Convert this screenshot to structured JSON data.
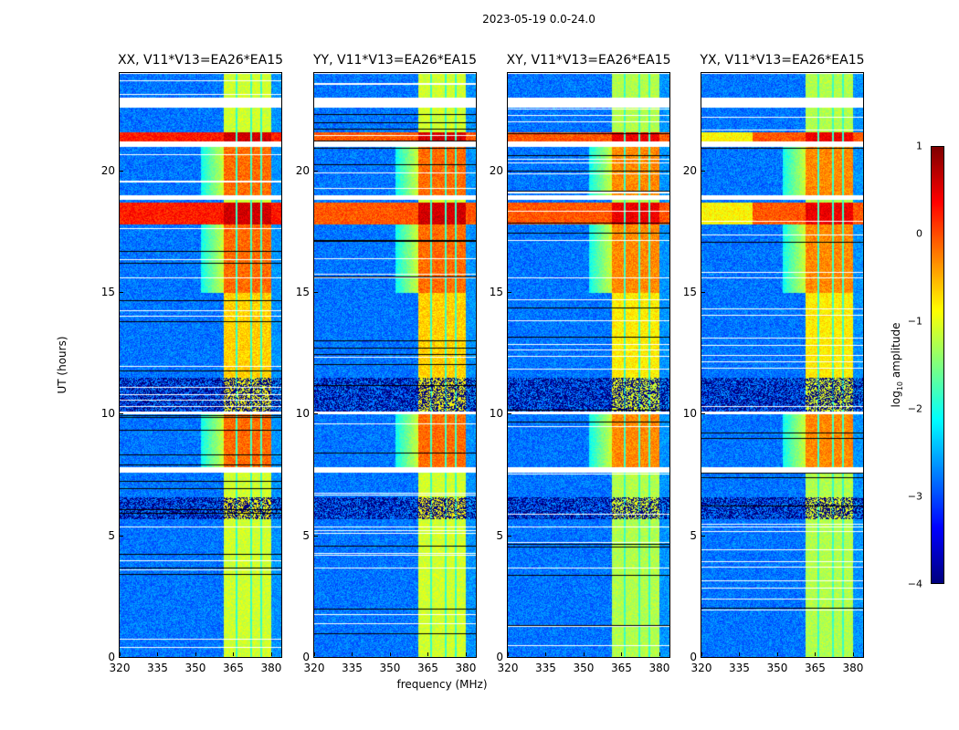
{
  "suptitle": "2023-05-19 0.0-24.0",
  "chart_data": {
    "type": "heatmap",
    "title": "2023-05-19 0.0-24.0",
    "xlabel": "frequency (MHz)",
    "ylabel": "UT (hours)",
    "xlim": [
      320,
      384
    ],
    "ylim": [
      0,
      24
    ],
    "xticks": [
      320,
      335,
      350,
      365,
      380
    ],
    "yticks": [
      0,
      5,
      10,
      15,
      20
    ],
    "colormap": "jet",
    "colorbar": {
      "label_prefix": "log",
      "label_sub": "10",
      "label_suffix": " amplitude",
      "range": [
        -4,
        1
      ],
      "ticks": [
        1,
        0,
        -1,
        -2,
        -3,
        -4
      ],
      "tick_labels": [
        "1",
        "0",
        "−1",
        "−2",
        "−3",
        "−4"
      ]
    },
    "signal_band_mhz": [
      361,
      380
    ],
    "channel_gaps_mhz": [
      366,
      372,
      376
    ],
    "panels": [
      {
        "pol": "XX",
        "title": "XX, V11*V13=EA26*EA15",
        "xlabel_shown": false
      },
      {
        "pol": "YY",
        "title": "YY, V11*V13=EA26*EA15",
        "xlabel_shown": true
      },
      {
        "pol": "XY",
        "title": "XY, V11*V13=EA26*EA15",
        "xlabel_shown": false
      },
      {
        "pol": "YX",
        "title": "YX, V11*V13=EA26*EA15",
        "xlabel_shown": false
      }
    ],
    "time_features": [
      {
        "ut": [
          22.6,
          23.0
        ],
        "kind": "flagged"
      },
      {
        "ut": [
          21.2,
          21.6
        ],
        "kind": "rfi-strong"
      },
      {
        "ut": [
          21.0,
          21.2
        ],
        "kind": "flagged"
      },
      {
        "ut": [
          19.0,
          21.0
        ],
        "kind": "signal-high"
      },
      {
        "ut": [
          18.8,
          19.0
        ],
        "kind": "flagged"
      },
      {
        "ut": [
          17.8,
          18.7
        ],
        "kind": "rfi-strong"
      },
      {
        "ut": [
          15.0,
          17.8
        ],
        "kind": "signal-high"
      },
      {
        "ut": [
          11.5,
          15.0
        ],
        "kind": "signal-mid"
      },
      {
        "ut": [
          10.1,
          11.5
        ],
        "kind": "dropout"
      },
      {
        "ut": [
          10.0,
          10.1
        ],
        "kind": "flagged"
      },
      {
        "ut": [
          7.8,
          10.0
        ],
        "kind": "signal-high"
      },
      {
        "ut": [
          7.6,
          7.8
        ],
        "kind": "flagged"
      },
      {
        "ut": [
          5.7,
          6.6
        ],
        "kind": "dropout"
      },
      {
        "ut": [
          0.0,
          5.7
        ],
        "kind": "signal-low"
      }
    ]
  }
}
